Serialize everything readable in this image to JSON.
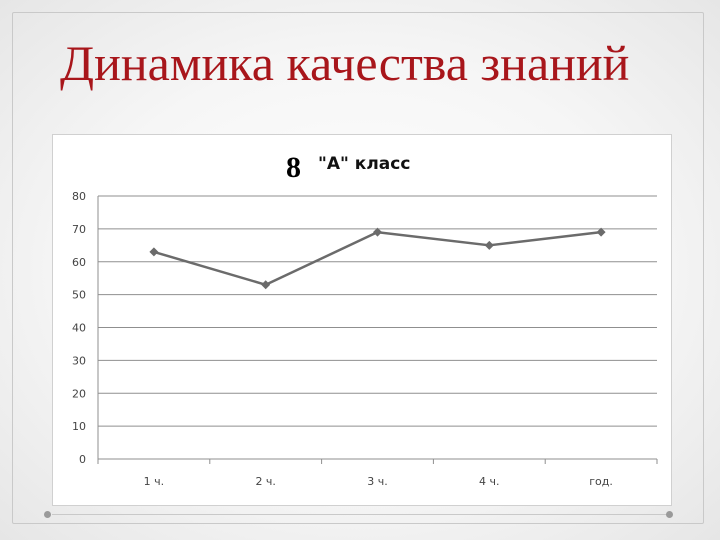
{
  "slide": {
    "title": "Динамика качества знаний"
  },
  "chart_data": {
    "type": "line",
    "title_number": "8",
    "title_text": "\"А\" класс",
    "categories": [
      "1 ч.",
      "2 ч.",
      "3 ч.",
      "4 ч.",
      "год."
    ],
    "values": [
      63,
      53,
      69,
      65,
      69
    ],
    "ylim": [
      0,
      80
    ],
    "yticks": [
      0,
      10,
      20,
      30,
      40,
      50,
      60,
      70,
      80
    ],
    "xlabel": "",
    "ylabel": "",
    "grid": "horizontal",
    "legend": "none",
    "line_color": "#6b6b6b",
    "marker": "diamond"
  },
  "colors": {
    "title": "#a8161b",
    "grid": "#8f8f8f",
    "series": "#6b6b6b"
  }
}
